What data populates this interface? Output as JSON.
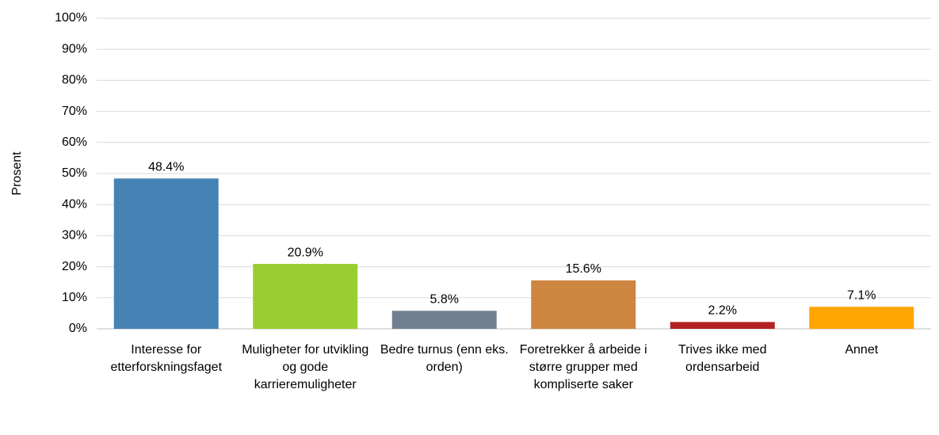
{
  "chart_data": {
    "type": "bar",
    "y_label": "Prosent",
    "categories": [
      "Interesse for etterforskningsfaget",
      "Muligheter for utvikling og gode karrieremuligheter",
      "Bedre turnus (enn eks. orden)",
      "Foretrekker å arbeide i større grupper med kompliserte saker",
      "Trives ikke med ordensarbeid",
      "Annet"
    ],
    "values": [
      48.4,
      20.9,
      5.8,
      15.6,
      2.2,
      7.1
    ],
    "value_labels": [
      "48.4%",
      "20.9%",
      "5.8%",
      "15.6%",
      "2.2%",
      "7.1%"
    ],
    "colors": [
      "#4682b4",
      "#9acd32",
      "#708090",
      "#cd853f",
      "#b22222",
      "#ffa500"
    ],
    "ylim": [
      0,
      100
    ],
    "yticks": [
      {
        "value": 0,
        "label": "0%"
      },
      {
        "value": 10,
        "label": "10%"
      },
      {
        "value": 20,
        "label": "20%"
      },
      {
        "value": 30,
        "label": "30%"
      },
      {
        "value": 40,
        "label": "40%"
      },
      {
        "value": 50,
        "label": "50%"
      },
      {
        "value": 60,
        "label": "60%"
      },
      {
        "value": 70,
        "label": "70%"
      },
      {
        "value": 80,
        "label": "80%"
      },
      {
        "value": 90,
        "label": "90%"
      },
      {
        "value": 100,
        "label": "100%"
      }
    ],
    "grid": true
  }
}
